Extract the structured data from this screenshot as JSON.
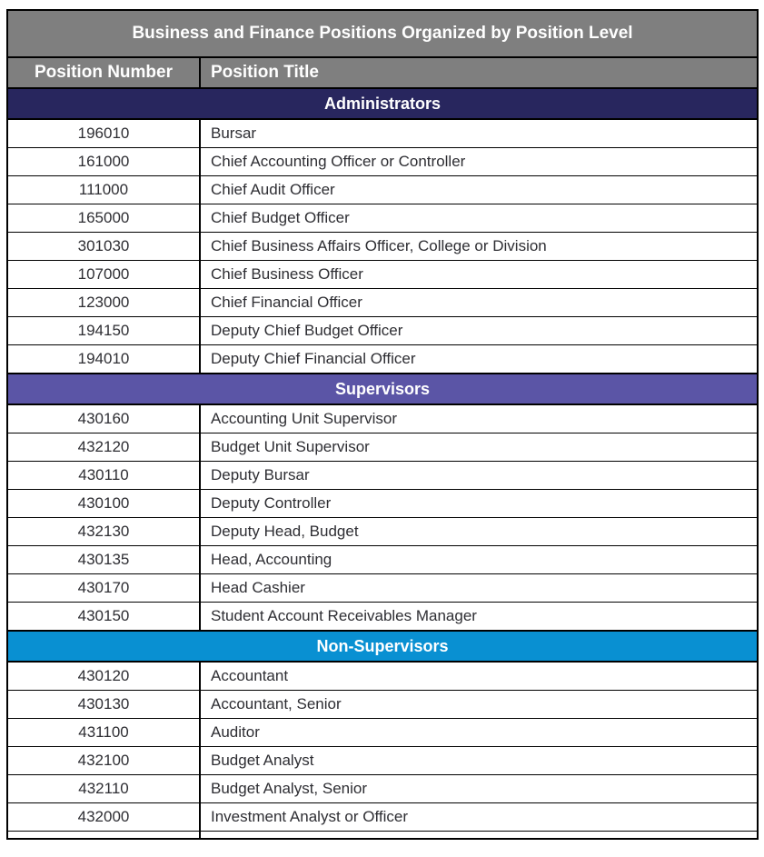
{
  "table": {
    "title": "Business and Finance Positions Organized by Position Level",
    "columns": [
      "Position Number",
      "Position Title"
    ],
    "sections": [
      {
        "name": "Administrators",
        "color": "#28265E",
        "rows": [
          {
            "number": "196010",
            "title": "Bursar"
          },
          {
            "number": "161000",
            "title": "Chief Accounting Officer or Controller"
          },
          {
            "number": "111000",
            "title": "Chief Audit Officer"
          },
          {
            "number": "165000",
            "title": "Chief Budget Officer"
          },
          {
            "number": "301030",
            "title": "Chief Business Affairs Officer, College or Division"
          },
          {
            "number": "107000",
            "title": "Chief Business Officer"
          },
          {
            "number": "123000",
            "title": "Chief Financial Officer"
          },
          {
            "number": "194150",
            "title": "Deputy Chief Budget Officer"
          },
          {
            "number": "194010",
            "title": "Deputy Chief Financial Officer"
          }
        ]
      },
      {
        "name": "Supervisors",
        "color": "#5B55A6",
        "rows": [
          {
            "number": "430160",
            "title": "Accounting Unit Supervisor"
          },
          {
            "number": "432120",
            "title": "Budget Unit Supervisor"
          },
          {
            "number": "430110",
            "title": "Deputy Bursar"
          },
          {
            "number": "430100",
            "title": "Deputy Controller"
          },
          {
            "number": "432130",
            "title": "Deputy Head, Budget"
          },
          {
            "number": "430135",
            "title": "Head, Accounting"
          },
          {
            "number": "430170",
            "title": "Head Cashier"
          },
          {
            "number": "430150",
            "title": "Student Account Receivables Manager"
          }
        ]
      },
      {
        "name": "Non-Supervisors",
        "color": "#0990D2",
        "rows": [
          {
            "number": "430120",
            "title": "Accountant"
          },
          {
            "number": "430130",
            "title": "Accountant, Senior"
          },
          {
            "number": "431100",
            "title": "Auditor"
          },
          {
            "number": "432100",
            "title": "Budget Analyst"
          },
          {
            "number": "432110",
            "title": "Budget Analyst, Senior"
          },
          {
            "number": "432000",
            "title": "Investment Analyst or Officer"
          }
        ]
      }
    ]
  },
  "colors": {
    "title_bar_gray": "#7F7F7F",
    "column_header_gray": "#7F7F7F",
    "administrators_navy": "#28265E",
    "supervisors_purple": "#5B55A6",
    "non_supervisors_blue": "#0990D2",
    "header_text": "#FFFFFF",
    "body_text": "#2E2E33",
    "border": "#000000"
  }
}
